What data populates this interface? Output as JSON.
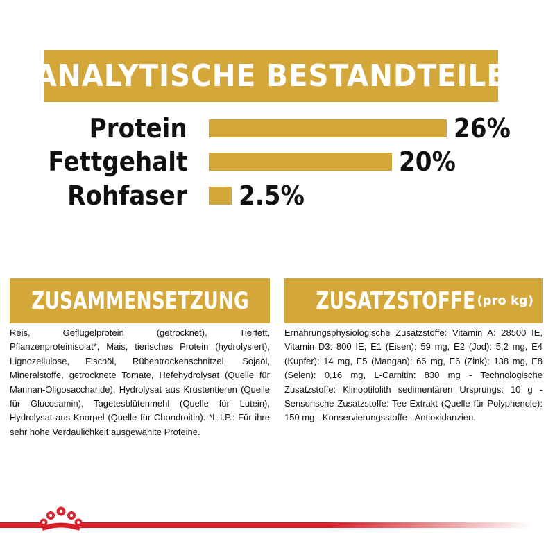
{
  "header": {
    "title": "ANALYTISCHE BESTANDTEILE"
  },
  "nutrients": [
    {
      "label": "Protein",
      "value": "26%",
      "percent": 26
    },
    {
      "label": "Fettgehalt",
      "value": "20%",
      "percent": 20
    },
    {
      "label": "Rohfaser",
      "value": "2.5%",
      "percent": 2.5
    }
  ],
  "composition": {
    "title": "ZUSAMMENSETZUNG",
    "text": "Reis, Geflügelprotein (getrocknet), Tierfett, Pflanzenproteinisolat*, Mais, tierisches Protein (hydrolysiert), Lignozellulose, Fischöl, Rübentrockenschnitzel, Sojaöl, Mineralstoffe, getrocknete Tomate, Hefehydrolysat (Quelle für Mannan-Oligosaccharide), Hydrolysat aus Krustentieren (Quelle für Glucosamin), Tagetesblütenmehl (Quelle für Lutein), Hydrolysat aus Knorpel (Quelle für Chondroitin). *L.I.P.: Für ihre sehr hohe Verdaulichkeit ausgewählte Proteine."
  },
  "additives": {
    "title": "ZUSATZSTOFFE",
    "subtitle": "(pro kg)",
    "text": "Ernährungsphysiologische Zusatzstoffe: Vitamin A: 28500 IE, Vitamin D3: 800 IE, E1 (Eisen): 59 mg, E2 (Jod): 5,2 mg, E4 (Kupfer): 14 mg, E5 (Mangan): 66 mg, E6 (Zink): 138 mg, E8 (Selen): 0,16 mg, L-Carnitin: 830 mg - Technologische Zusatzstoffe: Klinoptilolith sedimentären Ursprungs: 10 g - Sensorische Zusatzstoffe: Tee-Extrakt (Quelle für Polyphenole): 150 mg - Konservierungsstoffe - Antioxidanzien."
  },
  "colors": {
    "accent": "#d4a73b",
    "brand_red": "#d8202a",
    "text": "#111111"
  },
  "logo": {
    "icon": "royal-canin-crown-icon"
  }
}
